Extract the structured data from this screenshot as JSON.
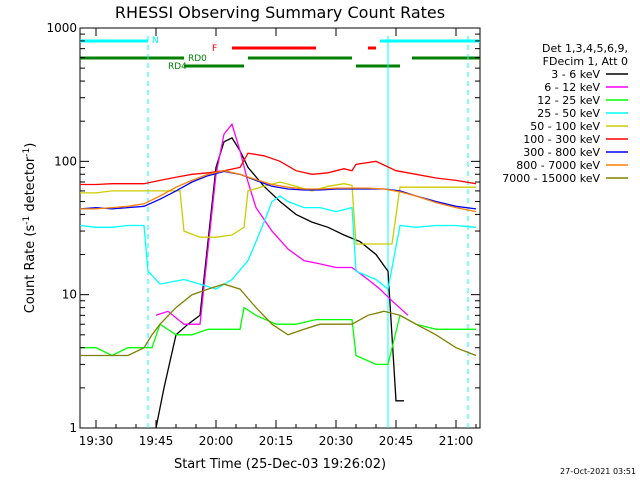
{
  "chart_data": {
    "type": "line",
    "title": "RHESSI Observing Summary Count Rates",
    "xlabel": "Start Time (25-Dec-03 19:26:02)",
    "ylabel_main": "Count Rate (s",
    "ylabel_sup1": "-1",
    "ylabel_mid": " detector",
    "ylabel_sup2": "-1",
    "ylabel_end": ")",
    "yscale": "log",
    "ylim": [
      1,
      1000
    ],
    "xlim": [
      "19:26",
      "21:06"
    ],
    "x_ticks": [
      "19:30",
      "19:45",
      "20:00",
      "20:15",
      "20:30",
      "20:45",
      "21:00"
    ],
    "y_ticks": [
      "1",
      "10",
      "100",
      "1000"
    ],
    "legend_header": [
      "Det 1,3,4,5,6,9,",
      "FDecim 1, Att 0"
    ],
    "legend_position": "right",
    "footer_timestamp": "27-Oct-2021 03:51",
    "state_bars": [
      {
        "label": "N",
        "color": "#00ffff",
        "segments": [
          [
            "19:26",
            "19:43"
          ],
          [
            "20:41",
            "21:06"
          ]
        ]
      },
      {
        "label": "F",
        "color": "#ff0000",
        "segments": [
          [
            "20:04",
            "20:25"
          ],
          [
            "20:38",
            "20:40"
          ]
        ]
      },
      {
        "label": "RD0",
        "color": "#008000",
        "segments": [
          [
            "19:26",
            "19:52"
          ],
          [
            "20:08",
            "20:34"
          ],
          [
            "20:49",
            "21:06"
          ]
        ]
      },
      {
        "label": "RD4",
        "color": "#008000",
        "segments": [
          [
            "19:52",
            "20:07"
          ],
          [
            "20:35",
            "20:46"
          ]
        ]
      }
    ],
    "vertical_markers": [
      {
        "color": "#00ffff",
        "style": "dashed",
        "x": "19:43"
      },
      {
        "color": "#00ffff",
        "style": "solid",
        "x": "20:43"
      },
      {
        "color": "#00ffff",
        "style": "dashed",
        "x": "21:03"
      }
    ],
    "series": [
      {
        "name": "3 - 6 keV",
        "color": "#000000",
        "points": [
          [
            "19:45",
            1
          ],
          [
            "19:47",
            2
          ],
          [
            "19:50",
            5
          ],
          [
            "19:53",
            6
          ],
          [
            "19:56",
            7
          ],
          [
            "19:58",
            25
          ],
          [
            "20:00",
            90
          ],
          [
            "20:02",
            140
          ],
          [
            "20:04",
            150
          ],
          [
            "20:06",
            120
          ],
          [
            "20:08",
            90
          ],
          [
            "20:12",
            65
          ],
          [
            "20:16",
            50
          ],
          [
            "20:20",
            40
          ],
          [
            "20:24",
            35
          ],
          [
            "20:28",
            32
          ],
          [
            "20:32",
            28
          ],
          [
            "20:36",
            25
          ],
          [
            "20:40",
            20
          ],
          [
            "20:43",
            15
          ],
          [
            "20:45",
            1.6
          ],
          [
            "20:47",
            1.6
          ]
        ]
      },
      {
        "name": "6 - 12 keV",
        "color": "#ff00ff",
        "points": [
          [
            "19:45",
            7
          ],
          [
            "19:48",
            7.5
          ],
          [
            "19:52",
            6
          ],
          [
            "19:56",
            6
          ],
          [
            "19:58",
            22
          ],
          [
            "20:00",
            80
          ],
          [
            "20:02",
            160
          ],
          [
            "20:04",
            190
          ],
          [
            "20:06",
            120
          ],
          [
            "20:08",
            70
          ],
          [
            "20:10",
            45
          ],
          [
            "20:14",
            30
          ],
          [
            "20:18",
            22
          ],
          [
            "20:22",
            18
          ],
          [
            "20:26",
            17
          ],
          [
            "20:30",
            16
          ],
          [
            "20:34",
            16
          ],
          [
            "20:38",
            13
          ],
          [
            "20:41",
            11
          ],
          [
            "20:44",
            9
          ],
          [
            "20:48",
            7
          ]
        ]
      },
      {
        "name": "12 - 25 keV",
        "color": "#00ff00",
        "points": [
          [
            "19:26",
            4
          ],
          [
            "19:30",
            4
          ],
          [
            "19:34",
            3.5
          ],
          [
            "19:38",
            4
          ],
          [
            "19:42",
            4
          ],
          [
            "19:44",
            4
          ],
          [
            "19:46",
            6
          ],
          [
            "19:50",
            5
          ],
          [
            "19:54",
            5
          ],
          [
            "19:58",
            5.5
          ],
          [
            "20:02",
            5.5
          ],
          [
            "20:06",
            5.5
          ],
          [
            "20:07",
            8
          ],
          [
            "20:10",
            7
          ],
          [
            "20:15",
            6
          ],
          [
            "20:20",
            6
          ],
          [
            "20:25",
            6.5
          ],
          [
            "20:30",
            6.5
          ],
          [
            "20:34",
            6.5
          ],
          [
            "20:35",
            3.5
          ],
          [
            "20:40",
            3
          ],
          [
            "20:43",
            3
          ],
          [
            "20:46",
            7
          ],
          [
            "20:50",
            6
          ],
          [
            "20:55",
            5.5
          ],
          [
            "21:00",
            5.5
          ],
          [
            "21:05",
            5.5
          ]
        ]
      },
      {
        "name": "25 - 50 keV",
        "color": "#00ffff",
        "points": [
          [
            "19:26",
            33
          ],
          [
            "19:30",
            32
          ],
          [
            "19:34",
            32
          ],
          [
            "19:38",
            33
          ],
          [
            "19:42",
            33
          ],
          [
            "19:43",
            15
          ],
          [
            "19:46",
            12
          ],
          [
            "19:52",
            13
          ],
          [
            "19:56",
            12
          ],
          [
            "20:00",
            11
          ],
          [
            "20:04",
            13
          ],
          [
            "20:08",
            18
          ],
          [
            "20:10",
            25
          ],
          [
            "20:12",
            35
          ],
          [
            "20:14",
            50
          ],
          [
            "20:16",
            55
          ],
          [
            "20:18",
            50
          ],
          [
            "20:22",
            45
          ],
          [
            "20:26",
            45
          ],
          [
            "20:30",
            42
          ],
          [
            "20:34",
            45
          ],
          [
            "20:35",
            15
          ],
          [
            "20:40",
            13
          ],
          [
            "20:43",
            11
          ],
          [
            "20:46",
            33
          ],
          [
            "20:50",
            32
          ],
          [
            "20:55",
            33
          ],
          [
            "21:00",
            33
          ],
          [
            "21:05",
            32
          ]
        ]
      },
      {
        "name": "50 - 100 keV",
        "color": "#cccc00",
        "points": [
          [
            "19:26",
            58
          ],
          [
            "19:30",
            58
          ],
          [
            "19:34",
            60
          ],
          [
            "19:38",
            60
          ],
          [
            "19:42",
            60
          ],
          [
            "19:45",
            60
          ],
          [
            "19:51",
            60
          ],
          [
            "19:52",
            30
          ],
          [
            "19:56",
            27
          ],
          [
            "20:00",
            27
          ],
          [
            "20:04",
            28
          ],
          [
            "20:07",
            32
          ],
          [
            "20:08",
            60
          ],
          [
            "20:12",
            65
          ],
          [
            "20:16",
            70
          ],
          [
            "20:20",
            65
          ],
          [
            "20:24",
            60
          ],
          [
            "20:28",
            65
          ],
          [
            "20:32",
            68
          ],
          [
            "20:34",
            66
          ],
          [
            "20:35",
            24
          ],
          [
            "20:40",
            24
          ],
          [
            "20:44",
            24
          ],
          [
            "20:46",
            64
          ],
          [
            "20:50",
            64
          ],
          [
            "20:55",
            64
          ],
          [
            "21:00",
            64
          ],
          [
            "21:05",
            64
          ]
        ]
      },
      {
        "name": "100 - 300 keV",
        "color": "#ff0000",
        "points": [
          [
            "19:26",
            67
          ],
          [
            "19:30",
            67
          ],
          [
            "19:34",
            68
          ],
          [
            "19:38",
            68
          ],
          [
            "19:42",
            68
          ],
          [
            "19:46",
            72
          ],
          [
            "19:50",
            76
          ],
          [
            "19:54",
            80
          ],
          [
            "19:58",
            82
          ],
          [
            "20:02",
            85
          ],
          [
            "20:06",
            90
          ],
          [
            "20:08",
            115
          ],
          [
            "20:12",
            110
          ],
          [
            "20:16",
            100
          ],
          [
            "20:20",
            85
          ],
          [
            "20:24",
            80
          ],
          [
            "20:28",
            82
          ],
          [
            "20:32",
            88
          ],
          [
            "20:34",
            85
          ],
          [
            "20:35",
            95
          ],
          [
            "20:40",
            100
          ],
          [
            "20:45",
            85
          ],
          [
            "20:50",
            80
          ],
          [
            "20:55",
            75
          ],
          [
            "21:00",
            72
          ],
          [
            "21:05",
            68
          ]
        ]
      },
      {
        "name": "300 - 800 keV",
        "color": "#0000ff",
        "points": [
          [
            "19:26",
            44
          ],
          [
            "19:30",
            45
          ],
          [
            "19:34",
            44
          ],
          [
            "19:38",
            45
          ],
          [
            "19:42",
            46
          ],
          [
            "19:46",
            52
          ],
          [
            "19:50",
            60
          ],
          [
            "19:54",
            70
          ],
          [
            "19:58",
            78
          ],
          [
            "20:02",
            84
          ],
          [
            "20:06",
            80
          ],
          [
            "20:10",
            72
          ],
          [
            "20:14",
            65
          ],
          [
            "20:18",
            62
          ],
          [
            "20:22",
            61
          ],
          [
            "20:26",
            61
          ],
          [
            "20:30",
            62
          ],
          [
            "20:34",
            62
          ],
          [
            "20:38",
            62
          ],
          [
            "20:42",
            62
          ],
          [
            "20:46",
            60
          ],
          [
            "20:50",
            55
          ],
          [
            "20:55",
            50
          ],
          [
            "21:00",
            46
          ],
          [
            "21:05",
            44
          ]
        ]
      },
      {
        "name": "800 - 7000 keV",
        "color": "#ff8000",
        "points": [
          [
            "19:26",
            44
          ],
          [
            "19:30",
            44
          ],
          [
            "19:34",
            45
          ],
          [
            "19:38",
            46
          ],
          [
            "19:42",
            48
          ],
          [
            "19:46",
            55
          ],
          [
            "19:50",
            64
          ],
          [
            "19:54",
            72
          ],
          [
            "19:58",
            80
          ],
          [
            "20:02",
            85
          ],
          [
            "20:06",
            80
          ],
          [
            "20:10",
            73
          ],
          [
            "20:14",
            67
          ],
          [
            "20:18",
            64
          ],
          [
            "20:22",
            62
          ],
          [
            "20:26",
            62
          ],
          [
            "20:30",
            63
          ],
          [
            "20:34",
            63
          ],
          [
            "20:38",
            63
          ],
          [
            "20:42",
            62
          ],
          [
            "20:46",
            59
          ],
          [
            "20:50",
            55
          ],
          [
            "20:55",
            49
          ],
          [
            "21:00",
            45
          ],
          [
            "21:05",
            42
          ]
        ]
      },
      {
        "name": "7000 - 15000 keV",
        "color": "#808000",
        "points": [
          [
            "19:26",
            3.5
          ],
          [
            "19:30",
            3.5
          ],
          [
            "19:34",
            3.5
          ],
          [
            "19:38",
            3.5
          ],
          [
            "19:42",
            4
          ],
          [
            "19:44",
            5
          ],
          [
            "19:46",
            6
          ],
          [
            "19:50",
            8
          ],
          [
            "19:54",
            10
          ],
          [
            "19:58",
            11
          ],
          [
            "20:02",
            12
          ],
          [
            "20:06",
            11
          ],
          [
            "20:10",
            8
          ],
          [
            "20:14",
            6
          ],
          [
            "20:18",
            5
          ],
          [
            "20:22",
            5.5
          ],
          [
            "20:26",
            6
          ],
          [
            "20:30",
            6
          ],
          [
            "20:34",
            6
          ],
          [
            "20:38",
            7
          ],
          [
            "20:42",
            7.5
          ],
          [
            "20:46",
            7
          ],
          [
            "20:50",
            6
          ],
          [
            "20:55",
            5
          ],
          [
            "21:00",
            4
          ],
          [
            "21:05",
            3.5
          ]
        ]
      }
    ]
  }
}
